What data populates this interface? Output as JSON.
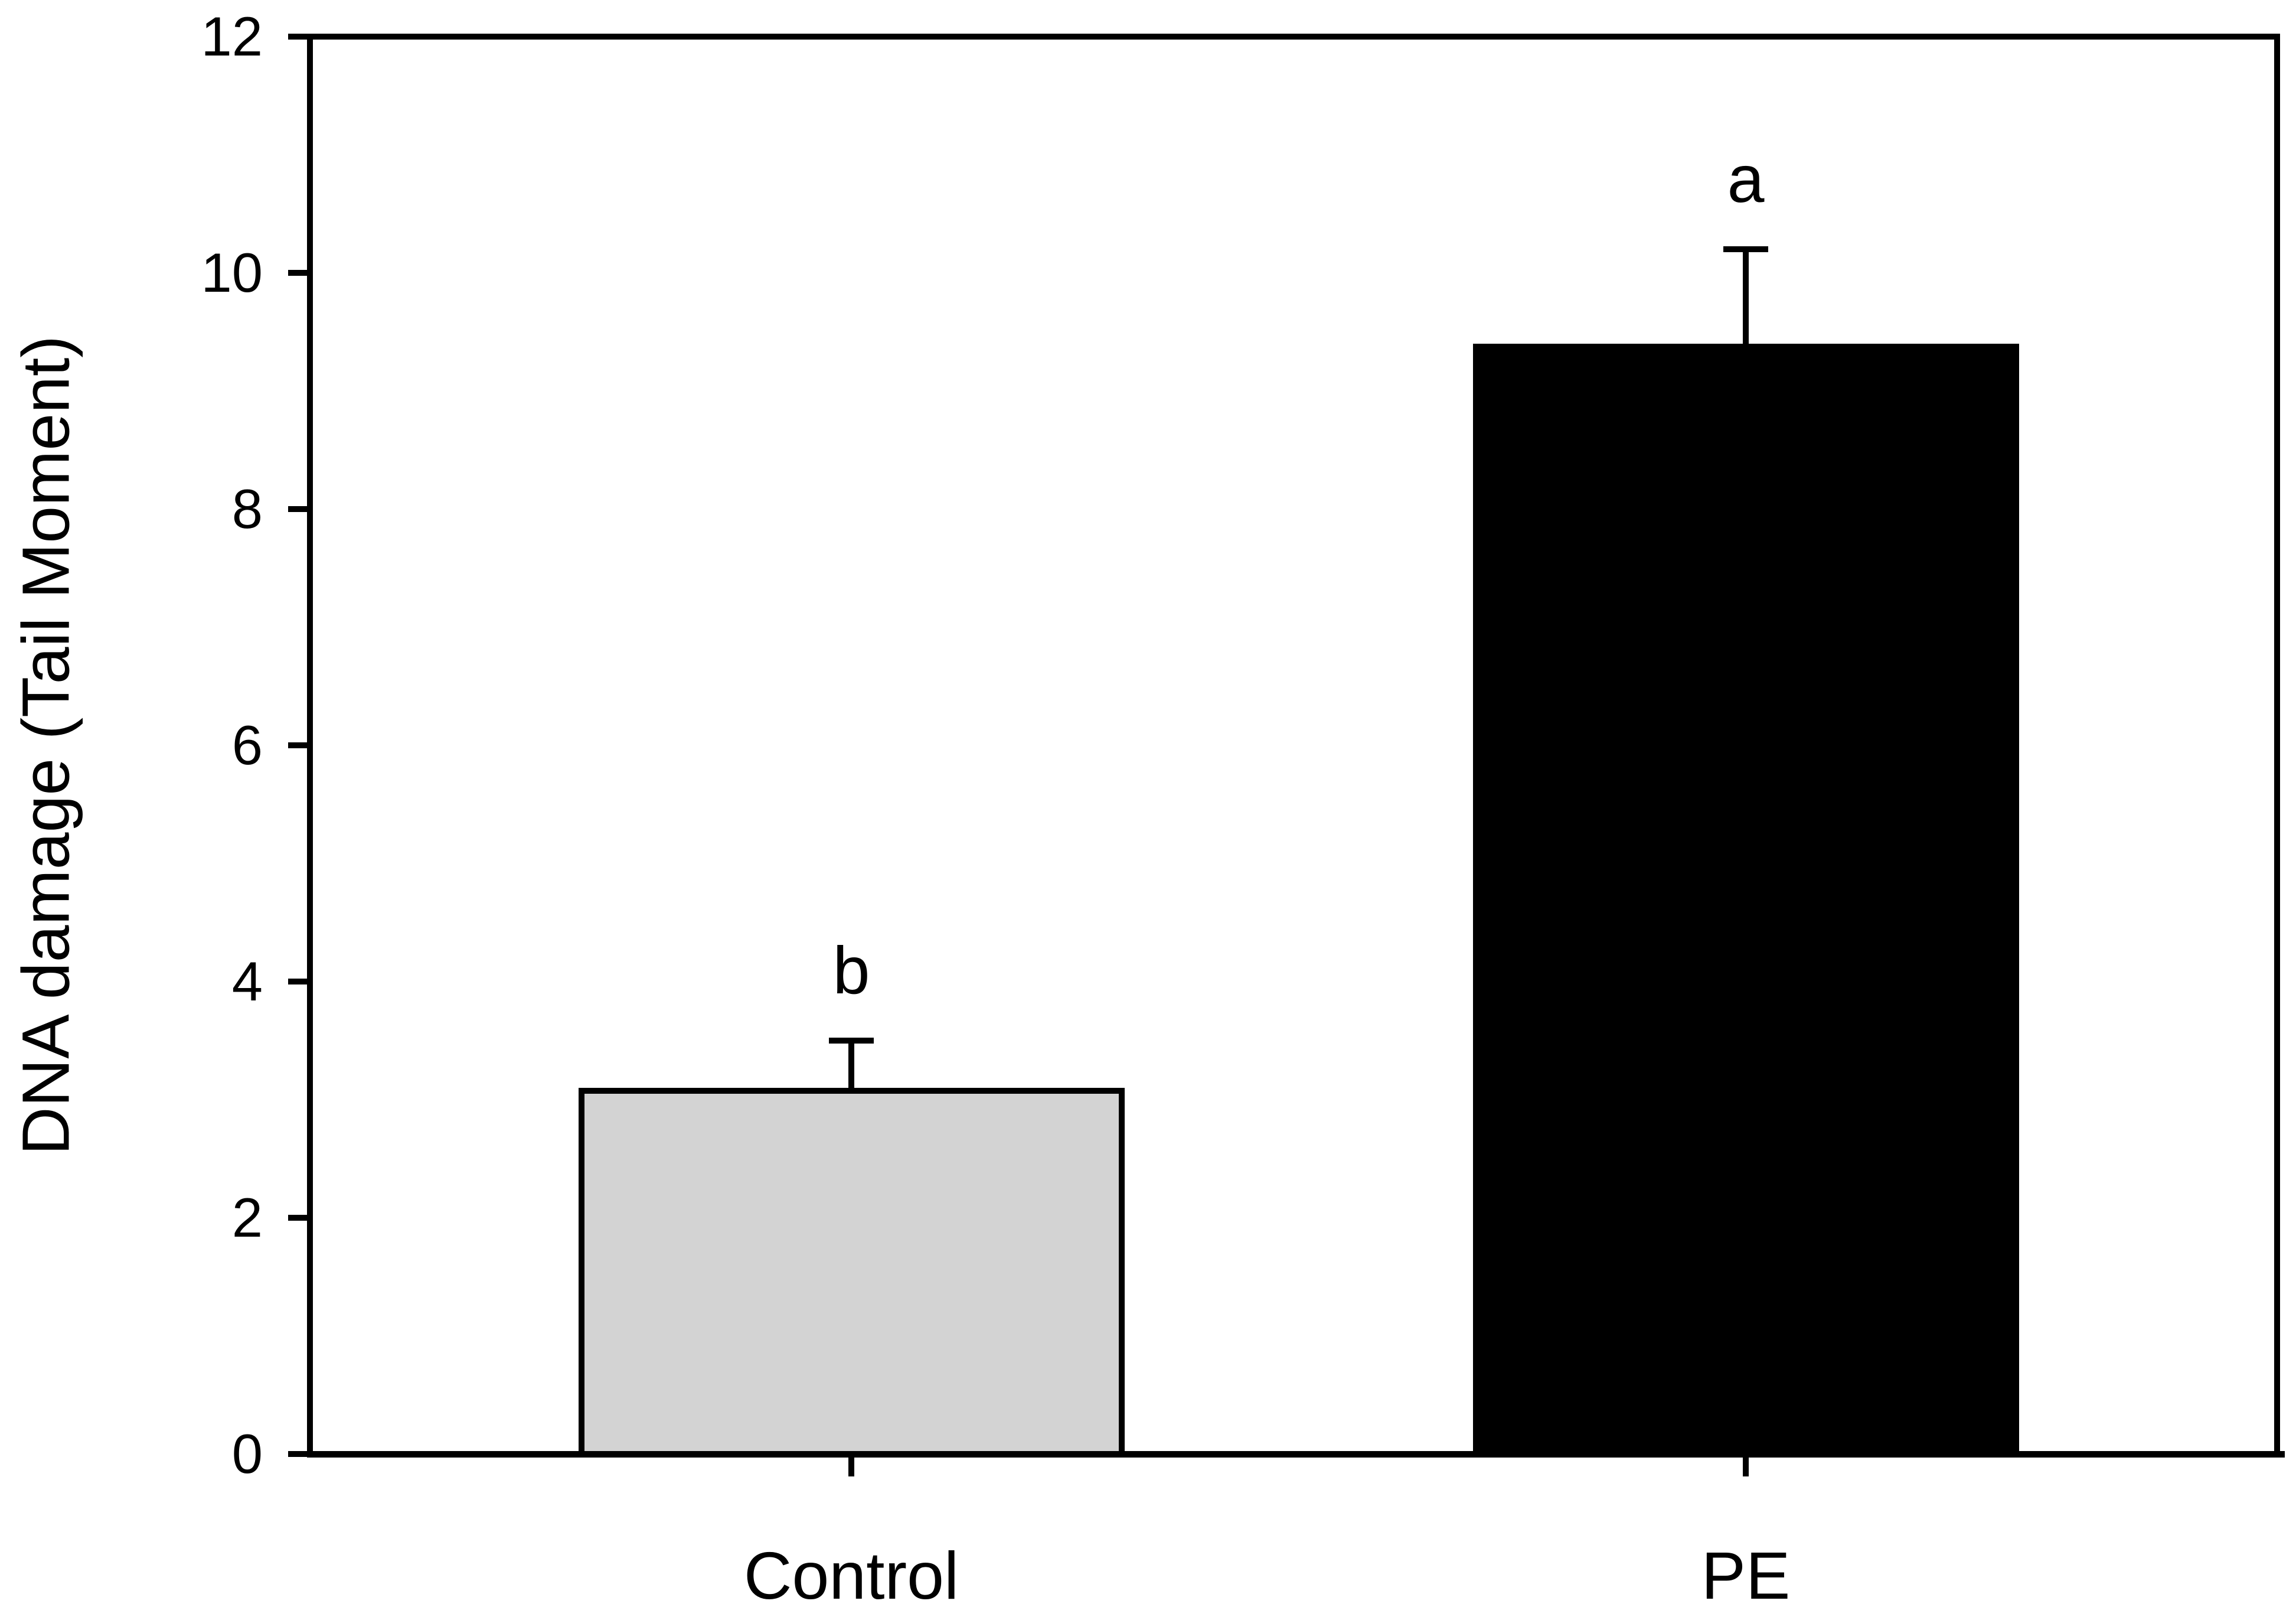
{
  "chart_data": {
    "type": "bar",
    "title": "",
    "xlabel": "",
    "ylabel": "DNA damage (Tail Moment)",
    "categories": [
      "Control",
      "PE"
    ],
    "values": [
      3.1,
      9.4
    ],
    "error_plus": [
      0.4,
      0.8
    ],
    "significance_labels": [
      "b",
      "a"
    ],
    "bar_fill_colors": [
      "#d3d3d3",
      "#000000"
    ],
    "bar_border_color": "#000000",
    "axis_color": "#000000",
    "background_color": "#ffffff",
    "ylim": [
      0,
      12
    ],
    "yticks": [
      0,
      2,
      4,
      6,
      8,
      10,
      12
    ],
    "grid": false,
    "legend": "none",
    "frame": "full-box",
    "tick_direction": "out"
  }
}
